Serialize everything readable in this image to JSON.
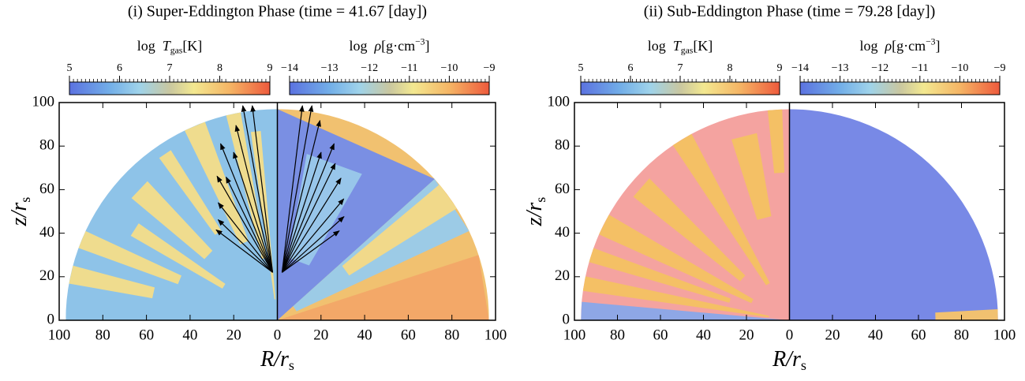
{
  "chart_data": [
    {
      "type": "heatmap",
      "title": "(i) Super-Eddington Phase (time = 41.67 [day])",
      "xlabel": {
        "symbol": "R",
        "rest": "/r",
        "sub": "s"
      },
      "ylabel": {
        "symbol": "z",
        "rest": "/r",
        "sub": "s"
      },
      "xlim": [
        -100,
        100
      ],
      "xticks": [
        {
          "value": -100,
          "label": "100"
        },
        {
          "value": -80,
          "label": "80"
        },
        {
          "value": -60,
          "label": "60"
        },
        {
          "value": -40,
          "label": "40"
        },
        {
          "value": -20,
          "label": "20"
        },
        0,
        20,
        40,
        60,
        80,
        100
      ],
      "ylim": [
        0,
        100
      ],
      "yticks": [
        0,
        20,
        40,
        60,
        80,
        100
      ],
      "colorbars": [
        {
          "label": {
            "prefix": "log",
            "symbol": "T",
            "sub": "gas",
            "unit": "[K]"
          },
          "lim": [
            5,
            9
          ],
          "ticks": [
            5,
            6,
            7,
            8,
            9
          ]
        },
        {
          "label": {
            "prefix": "log",
            "symbol": "ρ",
            "unit": "[g·cm",
            "sup": "−3",
            "close": "]"
          },
          "lim": [
            -14,
            -9
          ],
          "ticks": [
            {
              "value": -14,
              "label": "−14"
            },
            {
              "value": -13,
              "label": "−13"
            },
            {
              "value": -12,
              "label": "−12"
            },
            {
              "value": -11,
              "label": "−11"
            },
            {
              "value": -10,
              "label": "−10"
            },
            {
              "value": -9,
              "label": "−9"
            }
          ]
        }
      ]
    },
    {
      "type": "heatmap",
      "title": "(ii) Sub-Eddington Phase (time = 79.28 [day])",
      "xlabel": {
        "symbol": "R",
        "rest": "/r",
        "sub": "s"
      },
      "ylabel": {
        "symbol": "z",
        "rest": "/r",
        "sub": "s"
      },
      "xlim": [
        -100,
        100
      ],
      "xticks": [
        {
          "value": -100,
          "label": "100"
        },
        {
          "value": -80,
          "label": "80"
        },
        {
          "value": -60,
          "label": "60"
        },
        {
          "value": -40,
          "label": "40"
        },
        {
          "value": -20,
          "label": "20"
        },
        0,
        20,
        40,
        60,
        80,
        100
      ],
      "ylim": [
        0,
        100
      ],
      "yticks": [
        0,
        20,
        40,
        60,
        80,
        100
      ],
      "colorbars": [
        {
          "label": {
            "prefix": "log",
            "symbol": "T",
            "sub": "gas",
            "unit": "[K]"
          },
          "lim": [
            5,
            9
          ],
          "ticks": [
            5,
            6,
            7,
            8,
            9
          ]
        },
        {
          "label": {
            "prefix": "log",
            "symbol": "ρ",
            "unit": "[g·cm",
            "sup": "−3",
            "close": "]"
          },
          "lim": [
            -14,
            -9
          ],
          "ticks": [
            {
              "value": -14,
              "label": "−14"
            },
            {
              "value": -13,
              "label": "−13"
            },
            {
              "value": -12,
              "label": "−12"
            },
            {
              "value": -11,
              "label": "−11"
            },
            {
              "value": -10,
              "label": "−10"
            },
            {
              "value": -9,
              "label": "−9"
            }
          ]
        }
      ]
    }
  ]
}
